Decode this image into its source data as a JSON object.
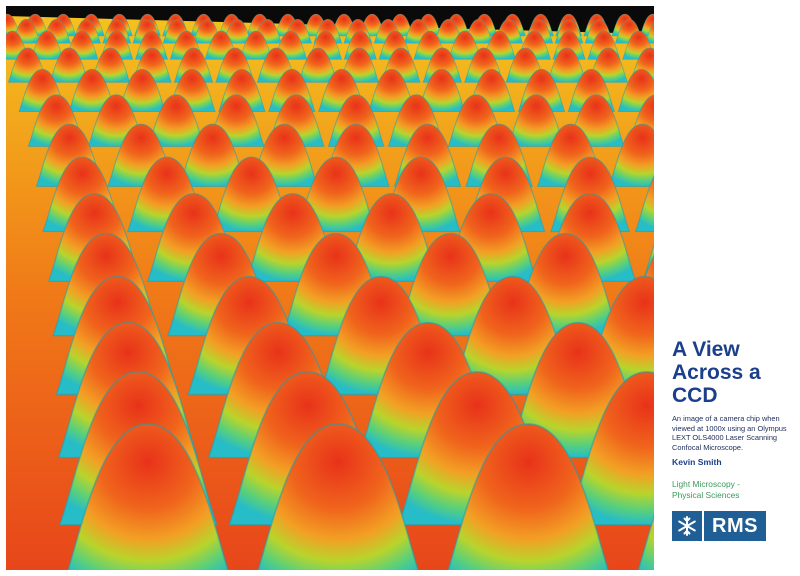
{
  "title_lines": [
    "A View",
    "Across a",
    "CCD"
  ],
  "description": "An image of a camera chip when viewed at 1000x using an Olympus LEXT OLS4000 Laser Scanning Confocal Microscope.",
  "author": "Kevin Smith",
  "category_lines": [
    "Light Microscopy -",
    "Physical Sciences"
  ],
  "logo": {
    "text": "RMS",
    "icon": "snowflake-icon"
  },
  "colors": {
    "title": "#1c3f8c",
    "category": "#3a9a5a",
    "logo_bg": "#1f5f96",
    "peak_red": "#e8321a",
    "mid_orange": "#f08c1e",
    "mid_yellow": "#c8d62a",
    "base_cyan": "#2ac8c8",
    "valley_yellow": "#ffd21e"
  }
}
